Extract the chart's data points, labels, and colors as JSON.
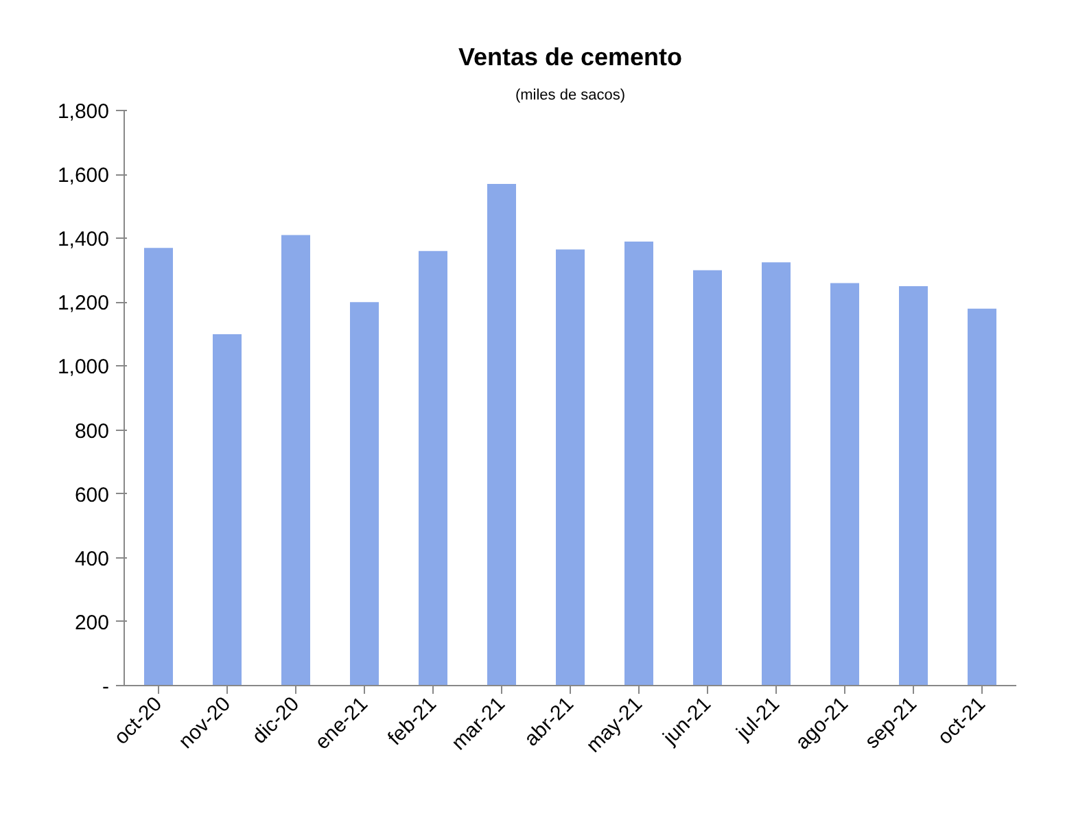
{
  "chart_data": {
    "type": "bar",
    "title": "Ventas de cemento",
    "subtitle": "(miles de sacos)",
    "categories": [
      "oct-20",
      "nov-20",
      "dic-20",
      "ene-21",
      "feb-21",
      "mar-21",
      "abr-21",
      "may-21",
      "jun-21",
      "jul-21",
      "ago-21",
      "sep-21",
      "oct-21"
    ],
    "values": [
      1370,
      1100,
      1410,
      1200,
      1360,
      1570,
      1365,
      1390,
      1300,
      1325,
      1260,
      1250,
      1180
    ],
    "color": "#8aa9ea",
    "ylim": [
      0,
      1800
    ],
    "yticks": [
      {
        "value": 0,
        "label": "-"
      },
      {
        "value": 200,
        "label": "200"
      },
      {
        "value": 400,
        "label": "400"
      },
      {
        "value": 600,
        "label": "600"
      },
      {
        "value": 800,
        "label": "800"
      },
      {
        "value": 1000,
        "label": "1,000"
      },
      {
        "value": 1200,
        "label": "1,200"
      },
      {
        "value": 1400,
        "label": "1,400"
      },
      {
        "value": 1600,
        "label": "1,600"
      },
      {
        "value": 1800,
        "label": "1,800"
      }
    ],
    "grid": false
  }
}
